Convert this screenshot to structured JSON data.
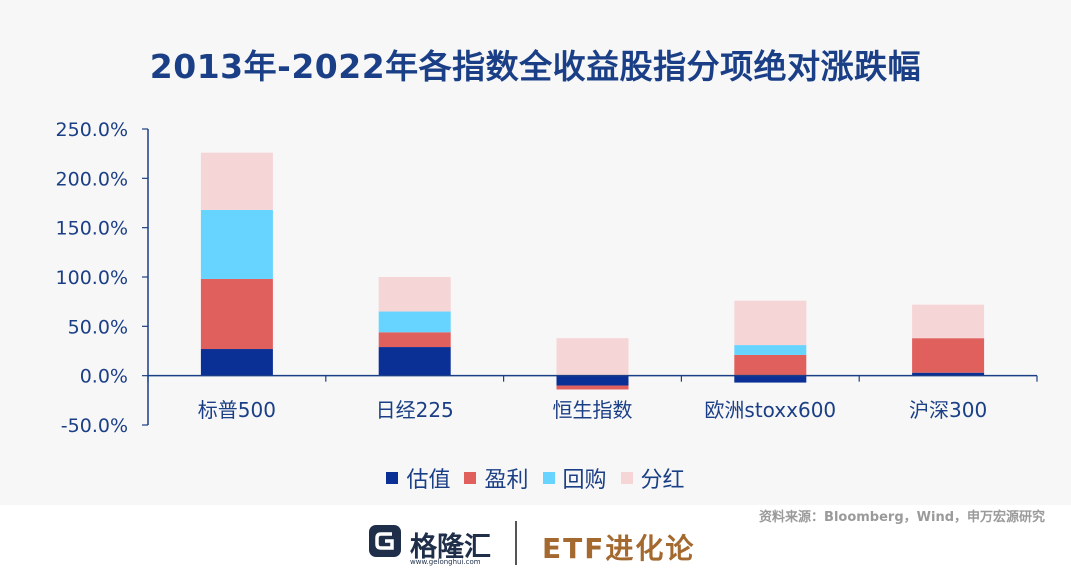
{
  "chart_data": {
    "type": "bar",
    "stacked": true,
    "title": "2013年-2022年各指数全收益股指分项绝对涨跌幅",
    "categories": [
      "标普500",
      "日经225",
      "恒生指数",
      "欧洲stoxx600",
      "沪深300"
    ],
    "series": [
      {
        "name": "估值",
        "color": "#0a2f95",
        "values": [
          27,
          29,
          -10,
          -7,
          3
        ]
      },
      {
        "name": "盈利",
        "color": "#e0605e",
        "values": [
          71,
          15,
          -4,
          21,
          35
        ]
      },
      {
        "name": "回购",
        "color": "#66d4ff",
        "values": [
          70,
          21,
          0,
          10,
          0
        ]
      },
      {
        "name": "分红",
        "color": "#f6d5d6",
        "values": [
          58,
          35,
          38,
          45,
          34
        ]
      }
    ],
    "yticks": [
      "250.0%",
      "200.0%",
      "150.0%",
      "100.0%",
      "50.0%",
      "0.0%",
      "-50.0%"
    ],
    "ytick_values": [
      250,
      200,
      150,
      100,
      50,
      0,
      -50
    ],
    "ylim": [
      -50,
      250
    ],
    "legend_position": "bottom",
    "grid": false
  },
  "source_note": "资料来源：Bloomberg，Wind，申万宏源研究",
  "footer": {
    "brand_cn": "格隆汇",
    "brand_url": "www.gelonghui.com",
    "etf_brand": "ETF进化论"
  }
}
